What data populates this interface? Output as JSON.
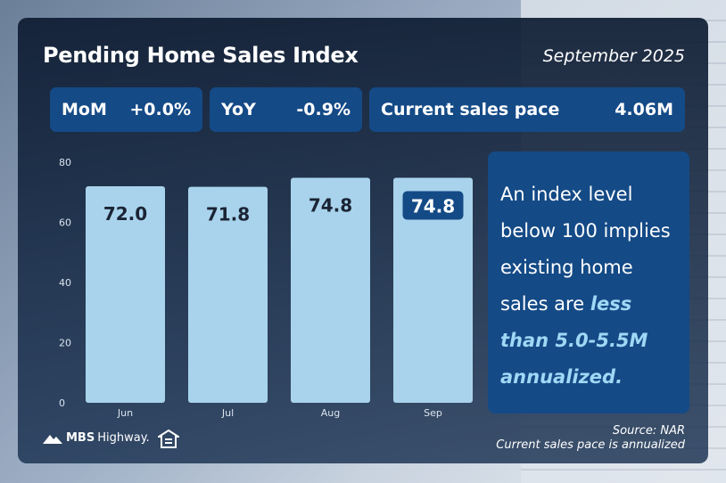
{
  "header": {
    "title": "Pending Home Sales Index",
    "date": "September 2025"
  },
  "stats": {
    "mom_label": "MoM",
    "mom_value": "+0.0%",
    "yoy_label": "YoY",
    "yoy_value": "-0.9%",
    "pace_label": "Current sales pace",
    "pace_value": "4.06M"
  },
  "chart_data": {
    "type": "bar",
    "categories": [
      "Jun",
      "Jul",
      "Aug",
      "Sep"
    ],
    "values": [
      72.0,
      71.8,
      74.8,
      74.8
    ],
    "value_labels": [
      "72.0",
      "71.8",
      "74.8",
      "74.8"
    ],
    "highlight_index": 3,
    "ylim": [
      0,
      80
    ],
    "yticks": [
      0,
      20,
      40,
      60,
      80
    ],
    "grid": false,
    "bar_color": "#a9d3ec",
    "highlight_label_bg": "#144a86"
  },
  "info": {
    "text_1": "An index level below 100 implies existing home sales are",
    "highlight": "less than 5.0-5.5M annualized."
  },
  "footer": {
    "source": "Source: NAR",
    "note": "Current sales pace is annualized",
    "logo_bold": "MBS",
    "logo_light": "Highway."
  }
}
